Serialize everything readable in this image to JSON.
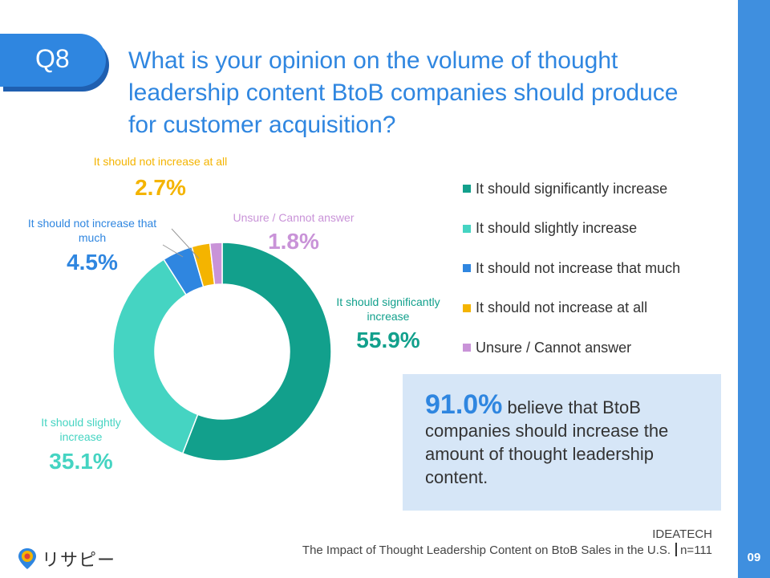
{
  "question": {
    "badge": "Q8",
    "text": "What is your opinion on the volume of thought leadership content BtoB companies should produce for customer acquisition?"
  },
  "colors": {
    "accent": "#2f86e0",
    "significantly": "#12a08c",
    "slightly": "#45d4c2",
    "not_much": "#2f86e0",
    "not_at_all": "#f4b400",
    "unsure": "#c993d8"
  },
  "chart_data": {
    "type": "pie",
    "variant": "donut",
    "title": "",
    "categories": [
      "It should significantly increase",
      "It should slightly increase",
      "It should not increase that much",
      "It should not increase at all",
      "Unsure / Cannot answer"
    ],
    "values": [
      55.9,
      35.1,
      4.5,
      2.7,
      1.8
    ],
    "value_labels": [
      "55.9%",
      "35.1%",
      "4.5%",
      "2.7%",
      "1.8%"
    ],
    "slice_labels": [
      "It should significantly increase",
      "It should slightly increase",
      "It should not increase that much",
      "It should not increase at all",
      "Unsure / Cannot answer"
    ],
    "colors": [
      "#12a08c",
      "#45d4c2",
      "#2f86e0",
      "#f4b400",
      "#c993d8"
    ],
    "legend_position": "right"
  },
  "callout": {
    "highlight": "91.0%",
    "text": "believe that BtoB companies should increase the amount of thought leadership content."
  },
  "source": {
    "org": "IDEATECH",
    "title": "The Impact of Thought Leadership Content on BtoB Sales in the U.S.",
    "n": "n=111"
  },
  "brand": {
    "name": "リサピー"
  },
  "page_number": "09"
}
